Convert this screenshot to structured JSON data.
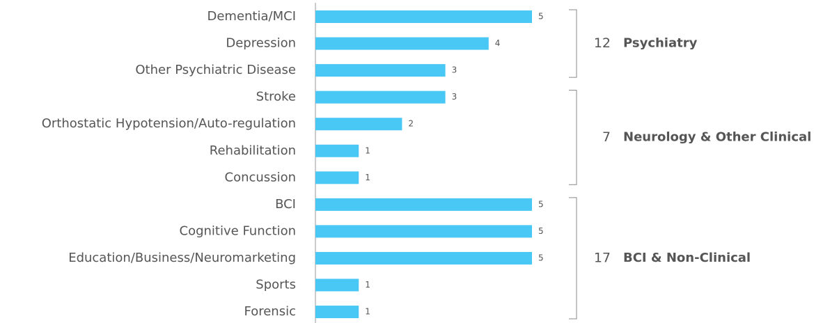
{
  "chart_data": {
    "type": "bar",
    "orientation": "horizontal",
    "color": "#4ac8f5",
    "xlim": [
      0,
      5
    ],
    "groups": [
      {
        "name": "Psychiatry",
        "total": 12,
        "categories": [
          "Dementia/MCI",
          "Depression",
          "Other Psychiatric Disease"
        ],
        "values": [
          5,
          4,
          3
        ]
      },
      {
        "name": "Neurology & Other Clinical",
        "total": 7,
        "categories": [
          "Stroke",
          "Orthostatic Hypotension/Auto-regulation",
          "Rehabilitation",
          "Concussion"
        ],
        "values": [
          3,
          2,
          1,
          1
        ]
      },
      {
        "name": "BCI & Non-Clinical",
        "total": 17,
        "categories": [
          "BCI",
          "Cognitive Function",
          "Education/Business/Neuromarketing",
          "Sports",
          "Forensic"
        ],
        "values": [
          5,
          5,
          5,
          1,
          1
        ]
      }
    ]
  }
}
